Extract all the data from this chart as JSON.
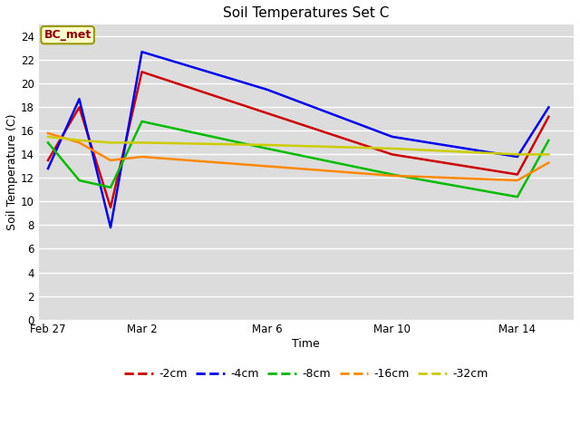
{
  "title": "Soil Temperatures Set C",
  "xlabel": "Time",
  "ylabel": "Soil Temperature (C)",
  "annotation": "BC_met",
  "ylim": [
    0,
    25
  ],
  "yticks": [
    0,
    2,
    4,
    6,
    8,
    10,
    12,
    14,
    16,
    18,
    20,
    22,
    24
  ],
  "fig_bg": "#ffffff",
  "plot_bg": "#dcdcdc",
  "xtick_positions": [
    0,
    3,
    7,
    11,
    15
  ],
  "xtick_labels": [
    "Feb 27",
    "Mar 2",
    "Mar 6",
    "Mar 10",
    "Mar 14"
  ],
  "xlim": [
    -0.3,
    16.8
  ],
  "series": {
    "-2cm": {
      "color": "#cc0000",
      "x": [
        0,
        1,
        2,
        3,
        7,
        11,
        15,
        16
      ],
      "y": [
        13.5,
        18.0,
        9.5,
        21.0,
        17.5,
        14.0,
        12.3,
        17.2
      ]
    },
    "-4cm": {
      "color": "#0000ee",
      "x": [
        0,
        1,
        2,
        3,
        7,
        11,
        15,
        16
      ],
      "y": [
        12.8,
        18.7,
        7.8,
        22.7,
        19.5,
        15.5,
        13.8,
        18.0
      ]
    },
    "-8cm": {
      "color": "#00bb00",
      "x": [
        0,
        1,
        2,
        3,
        7,
        11,
        15,
        16
      ],
      "y": [
        15.0,
        11.8,
        11.2,
        16.8,
        14.5,
        12.3,
        10.4,
        15.2
      ]
    },
    "-16cm": {
      "color": "#ff8800",
      "x": [
        0,
        1,
        2,
        3,
        7,
        11,
        15,
        16
      ],
      "y": [
        15.8,
        15.0,
        13.5,
        13.8,
        13.0,
        12.2,
        11.8,
        13.3
      ]
    },
    "-32cm": {
      "color": "#cccc00",
      "x": [
        0,
        1,
        2,
        3,
        7,
        11,
        15,
        16
      ],
      "y": [
        15.5,
        15.2,
        15.0,
        15.0,
        14.8,
        14.5,
        14.0,
        14.0
      ]
    }
  },
  "legend_order": [
    "-2cm",
    "-4cm",
    "-8cm",
    "-16cm",
    "-32cm"
  ],
  "linewidth": 1.8
}
